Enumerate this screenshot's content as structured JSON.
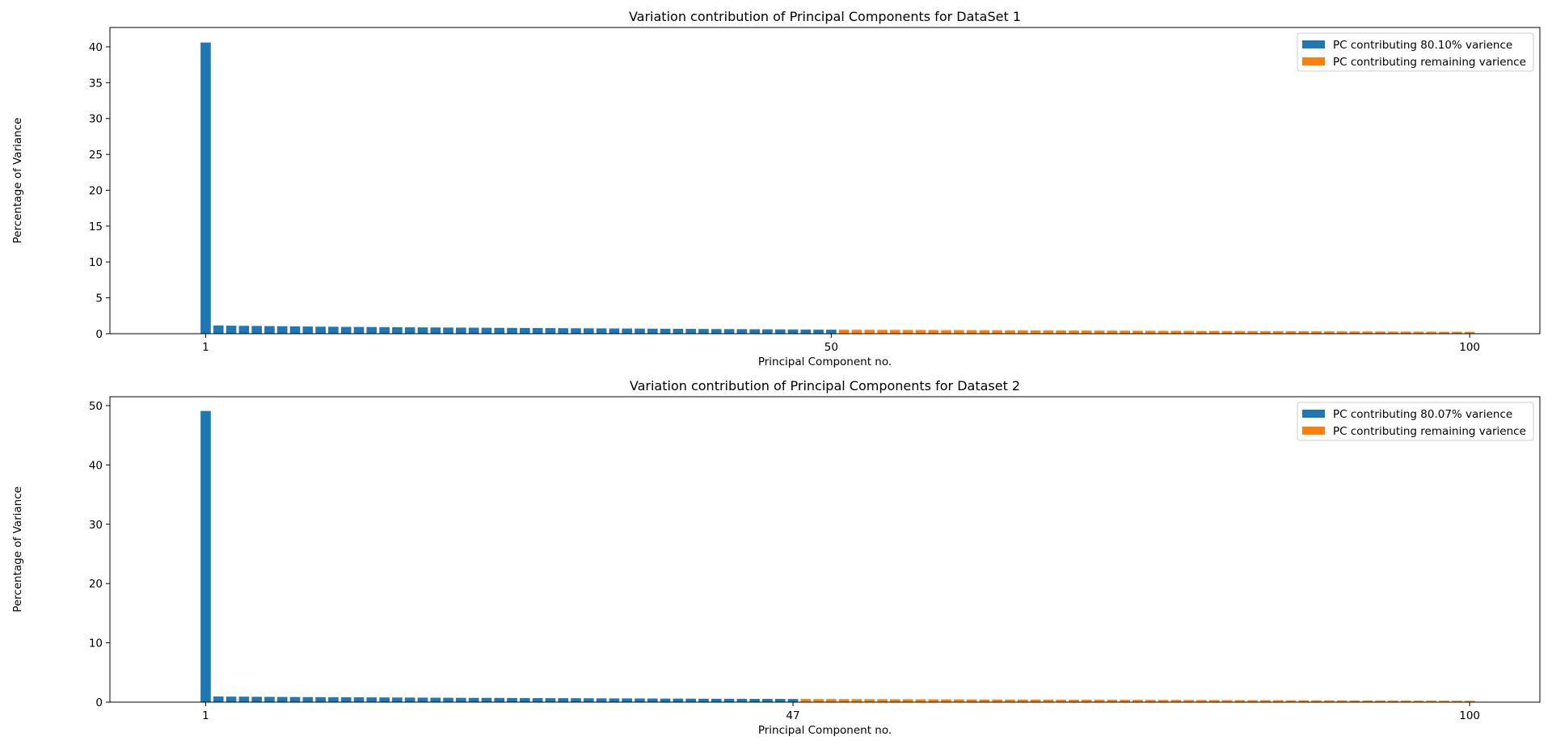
{
  "colors": {
    "primary": "#1f77b4",
    "remaining": "#ff7f0e"
  },
  "chart_data": [
    {
      "type": "bar",
      "title": "Variation contribution of Principal Components for DataSet 1",
      "xlabel": "Principal Component no.",
      "ylabel": "Percentage of Variance",
      "xlim": [
        -6.5,
        105.5
      ],
      "ylim": [
        0,
        42.7
      ],
      "yticks": [
        0,
        5,
        10,
        15,
        20,
        25,
        30,
        35,
        40
      ],
      "xticks": [
        1,
        50,
        100
      ],
      "grid": false,
      "legend_position": "top-right",
      "series": [
        {
          "name": "PC contributing 80.10% varience",
          "x": [
            1,
            2,
            3,
            4,
            5,
            6,
            7,
            8,
            9,
            10,
            11,
            12,
            13,
            14,
            15,
            16,
            17,
            18,
            19,
            20,
            21,
            22,
            23,
            24,
            25,
            26,
            27,
            28,
            29,
            30,
            31,
            32,
            33,
            34,
            35,
            36,
            37,
            38,
            39,
            40,
            41,
            42,
            43,
            44,
            45,
            46,
            47,
            48,
            49,
            50
          ],
          "values": [
            40.6,
            1.15,
            1.12,
            1.1,
            1.08,
            1.06,
            1.04,
            1.02,
            1.0,
            0.98,
            0.97,
            0.95,
            0.94,
            0.93,
            0.92,
            0.9,
            0.89,
            0.88,
            0.87,
            0.86,
            0.85,
            0.84,
            0.83,
            0.82,
            0.81,
            0.8,
            0.79,
            0.78,
            0.77,
            0.76,
            0.75,
            0.74,
            0.73,
            0.72,
            0.71,
            0.7,
            0.69,
            0.68,
            0.67,
            0.66,
            0.65,
            0.64,
            0.63,
            0.62,
            0.61,
            0.6,
            0.59,
            0.58,
            0.57,
            0.56
          ]
        },
        {
          "name": "PC contributing remaining varience",
          "x": [
            51,
            52,
            53,
            54,
            55,
            56,
            57,
            58,
            59,
            60,
            61,
            62,
            63,
            64,
            65,
            66,
            67,
            68,
            69,
            70,
            71,
            72,
            73,
            74,
            75,
            76,
            77,
            78,
            79,
            80,
            81,
            82,
            83,
            84,
            85,
            86,
            87,
            88,
            89,
            90,
            91,
            92,
            93,
            94,
            95,
            96,
            97,
            98,
            99,
            100
          ],
          "values": [
            0.55,
            0.54,
            0.54,
            0.53,
            0.53,
            0.52,
            0.52,
            0.51,
            0.5,
            0.5,
            0.49,
            0.49,
            0.48,
            0.47,
            0.47,
            0.46,
            0.46,
            0.45,
            0.44,
            0.44,
            0.43,
            0.43,
            0.42,
            0.41,
            0.41,
            0.4,
            0.4,
            0.39,
            0.38,
            0.38,
            0.37,
            0.37,
            0.36,
            0.35,
            0.35,
            0.34,
            0.34,
            0.33,
            0.32,
            0.32,
            0.31,
            0.31,
            0.3,
            0.29,
            0.29,
            0.28,
            0.28,
            0.27,
            0.26,
            0.26
          ]
        }
      ]
    },
    {
      "type": "bar",
      "title": "Variation contribution of Principal Components for Dataset 2",
      "xlabel": "Principal Component no.",
      "ylabel": "Percentage of Variance",
      "xlim": [
        -6.5,
        105.5
      ],
      "ylim": [
        0,
        51.5
      ],
      "yticks": [
        0,
        10,
        20,
        30,
        40,
        50
      ],
      "xticks": [
        1,
        47,
        100
      ],
      "grid": false,
      "legend_position": "top-right",
      "series": [
        {
          "name": "PC contributing 80.07% varience",
          "x": [
            1,
            2,
            3,
            4,
            5,
            6,
            7,
            8,
            9,
            10,
            11,
            12,
            13,
            14,
            15,
            16,
            17,
            18,
            19,
            20,
            21,
            22,
            23,
            24,
            25,
            26,
            27,
            28,
            29,
            30,
            31,
            32,
            33,
            34,
            35,
            36,
            37,
            38,
            39,
            40,
            41,
            42,
            43,
            44,
            45,
            46,
            47
          ],
          "values": [
            49.1,
            0.95,
            0.93,
            0.92,
            0.9,
            0.89,
            0.87,
            0.86,
            0.85,
            0.84,
            0.83,
            0.82,
            0.81,
            0.8,
            0.79,
            0.78,
            0.77,
            0.76,
            0.75,
            0.74,
            0.73,
            0.72,
            0.72,
            0.71,
            0.7,
            0.69,
            0.68,
            0.67,
            0.67,
            0.66,
            0.65,
            0.64,
            0.63,
            0.63,
            0.62,
            0.61,
            0.6,
            0.6,
            0.59,
            0.58,
            0.57,
            0.57,
            0.56,
            0.55,
            0.55,
            0.54,
            0.53
          ]
        },
        {
          "name": "PC contributing remaining varience",
          "x": [
            48,
            49,
            50,
            51,
            52,
            53,
            54,
            55,
            56,
            57,
            58,
            59,
            60,
            61,
            62,
            63,
            64,
            65,
            66,
            67,
            68,
            69,
            70,
            71,
            72,
            73,
            74,
            75,
            76,
            77,
            78,
            79,
            80,
            81,
            82,
            83,
            84,
            85,
            86,
            87,
            88,
            89,
            90,
            91,
            92,
            93,
            94,
            95,
            96,
            97,
            98,
            99,
            100
          ],
          "values": [
            0.53,
            0.52,
            0.52,
            0.51,
            0.51,
            0.5,
            0.5,
            0.49,
            0.49,
            0.48,
            0.48,
            0.47,
            0.47,
            0.46,
            0.45,
            0.45,
            0.44,
            0.44,
            0.43,
            0.43,
            0.42,
            0.41,
            0.41,
            0.4,
            0.4,
            0.39,
            0.39,
            0.38,
            0.37,
            0.37,
            0.36,
            0.36,
            0.35,
            0.34,
            0.34,
            0.33,
            0.33,
            0.32,
            0.31,
            0.31,
            0.3,
            0.3,
            0.29,
            0.28,
            0.28,
            0.27,
            0.26,
            0.26,
            0.25,
            0.25,
            0.24,
            0.23,
            0.23
          ]
        }
      ]
    }
  ]
}
